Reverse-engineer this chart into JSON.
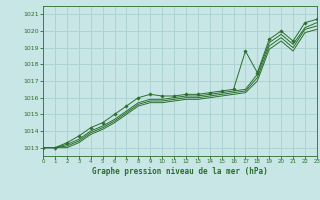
{
  "title": "Graphe pression niveau de la mer (hPa)",
  "background_color": "#c8e6e6",
  "grid_color": "#a8d0d0",
  "line_color": "#2a6e2a",
  "xlim": [
    0,
    23
  ],
  "ylim": [
    1012.5,
    1021.5
  ],
  "yticks": [
    1013,
    1014,
    1015,
    1016,
    1017,
    1018,
    1019,
    1020,
    1021
  ],
  "xticks": [
    0,
    1,
    2,
    3,
    4,
    5,
    6,
    7,
    8,
    9,
    10,
    11,
    12,
    13,
    14,
    15,
    16,
    17,
    18,
    19,
    20,
    21,
    22,
    23
  ],
  "series": [
    [
      1013.0,
      1013.0,
      1013.3,
      1013.7,
      1014.2,
      1014.5,
      1015.0,
      1015.5,
      1016.0,
      1016.2,
      1016.1,
      1016.1,
      1016.2,
      1016.2,
      1016.3,
      1016.4,
      1016.5,
      1018.8,
      1017.5,
      1019.5,
      1020.0,
      1019.4,
      1020.5,
      1020.7
    ],
    [
      1013.0,
      1013.0,
      1013.2,
      1013.5,
      1014.0,
      1014.3,
      1014.7,
      1015.2,
      1015.7,
      1015.9,
      1015.9,
      1016.0,
      1016.1,
      1016.1,
      1016.2,
      1016.3,
      1016.4,
      1016.5,
      1017.4,
      1019.3,
      1019.8,
      1019.2,
      1020.2,
      1020.5
    ],
    [
      1013.0,
      1013.0,
      1013.1,
      1013.4,
      1013.9,
      1014.2,
      1014.6,
      1015.1,
      1015.6,
      1015.8,
      1015.8,
      1015.9,
      1016.0,
      1016.0,
      1016.1,
      1016.2,
      1016.3,
      1016.4,
      1017.2,
      1019.1,
      1019.6,
      1019.0,
      1020.1,
      1020.3
    ],
    [
      1013.0,
      1013.0,
      1013.0,
      1013.3,
      1013.8,
      1014.1,
      1014.5,
      1015.0,
      1015.5,
      1015.7,
      1015.7,
      1015.8,
      1015.9,
      1015.9,
      1016.0,
      1016.1,
      1016.2,
      1016.3,
      1017.0,
      1018.9,
      1019.4,
      1018.8,
      1019.9,
      1020.1
    ]
  ],
  "marker_series": [
    1013.0,
    1013.0,
    1013.3,
    1013.7,
    1014.2,
    1014.5,
    1015.0,
    1015.5,
    1016.0,
    1016.2,
    1016.1,
    1016.1,
    1016.2,
    1016.2,
    1016.3,
    1016.4,
    1016.5,
    1018.8,
    1017.5,
    1019.5,
    1020.0,
    1019.4,
    1020.5,
    1020.7
  ]
}
